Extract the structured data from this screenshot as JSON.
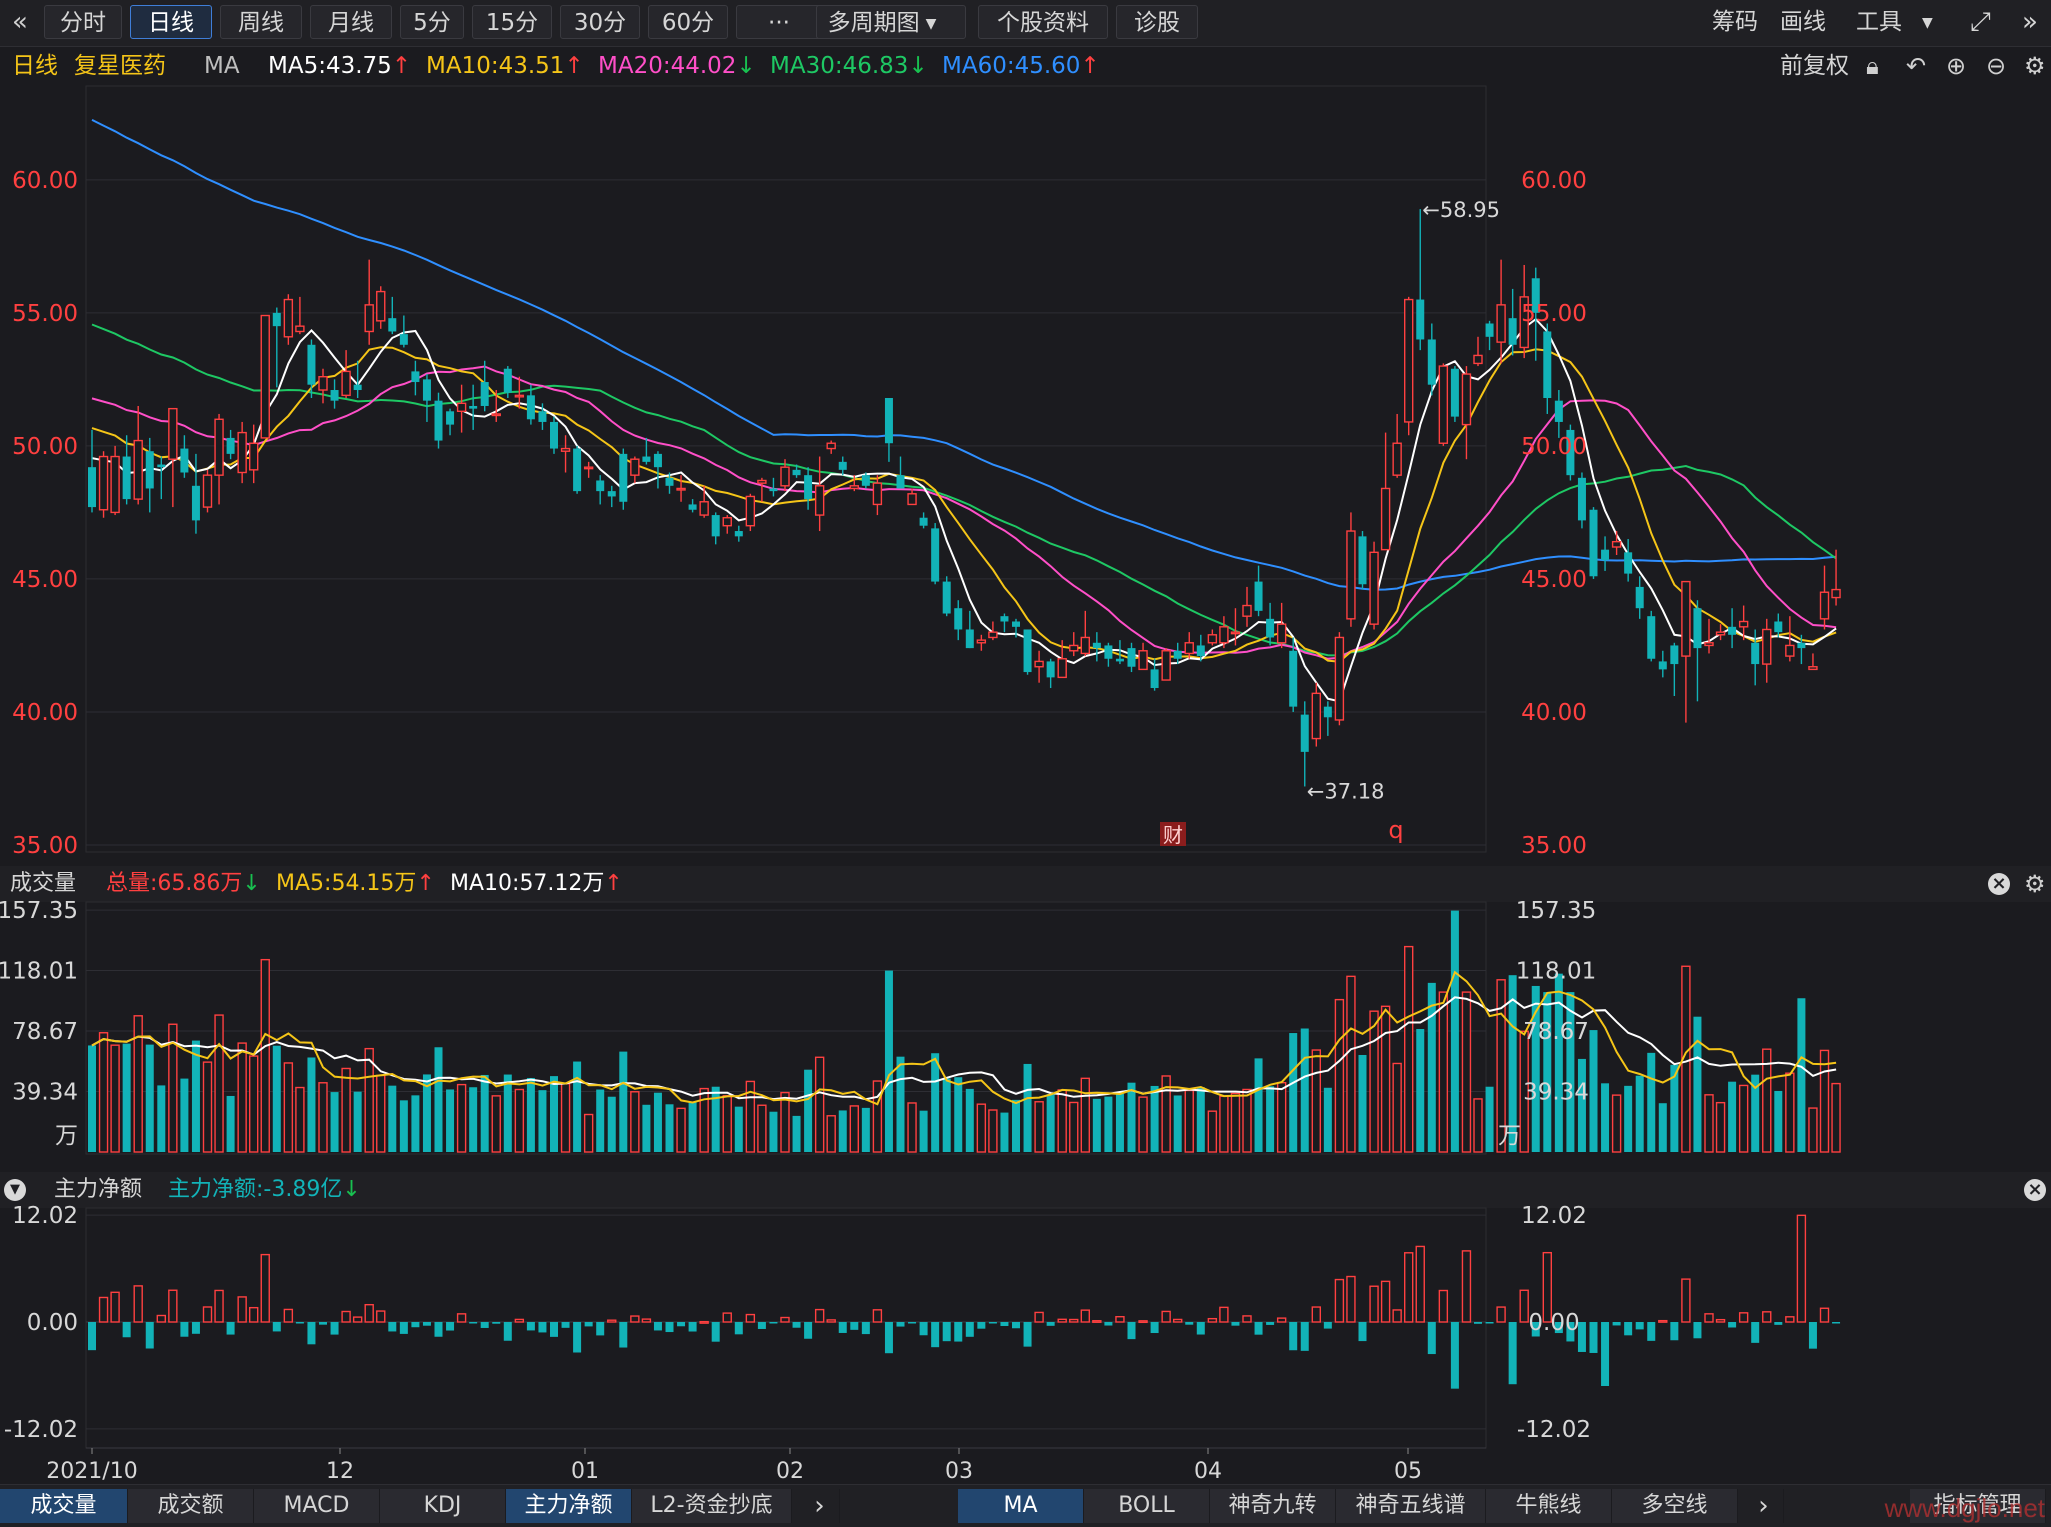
{
  "toolbar": {
    "back_icon": "double-chevron-left-icon",
    "tabs": [
      "分时",
      "日线",
      "周线",
      "月线",
      "5分",
      "15分",
      "30分",
      "60分",
      "···",
      "多周期图",
      "个股资料",
      "诊股"
    ],
    "active_tab": "日线",
    "right": [
      "筹码",
      "画线",
      "工具"
    ],
    "fullscreen_icon": "fullscreen-icon",
    "collapse_icon": "double-chevron-right-icon"
  },
  "info": {
    "period": "日线",
    "stock_name": "复星医药",
    "indicator": "MA",
    "ma5": "MA5:43.75",
    "ma10": "MA10:43.51",
    "ma20": "MA20:44.02",
    "ma30": "MA30:46.83",
    "ma60": "MA60:45.60",
    "adjust": "前复权",
    "colors": {
      "ma5": "#ffffff",
      "ma10": "#f5c518",
      "ma20": "#ff4fc8",
      "ma30": "#1ec864",
      "ma60": "#2f8fff",
      "up": "#ff4040",
      "down": "#12b3b8"
    }
  },
  "price_axis": {
    "ticks": [
      "60.00",
      "55.00",
      "50.00",
      "45.00",
      "40.00",
      "35.00"
    ],
    "high_label": "58.95",
    "low_label": "37.18",
    "event_badge": "财",
    "marker": "q"
  },
  "volume": {
    "title": "成交量",
    "total": "总量:65.86万",
    "ma5": "MA5:54.15万",
    "ma10": "MA10:57.12万",
    "ticks": [
      "157.35",
      "118.01",
      "78.67",
      "39.34",
      "万"
    ]
  },
  "capital": {
    "title": "主力净额",
    "value": "主力净额:-3.89亿",
    "ticks": [
      "12.02",
      "0.00",
      "-12.02"
    ]
  },
  "x_axis": {
    "labels": [
      "2021/10",
      "12",
      "01",
      "02",
      "03",
      "04",
      "05"
    ]
  },
  "bottom_tabs_left": [
    "成交量",
    "成交额",
    "MACD",
    "KDJ",
    "主力净额",
    "L2-资金抄底"
  ],
  "bottom_tabs_right": [
    "MA",
    "BOLL",
    "神奇九转",
    "神奇五线谱",
    "牛熊线",
    "多空线"
  ],
  "bottom_manage": "指标管理",
  "watermark": "www.dgjlo.net",
  "chart_data": {
    "type": "candlestick",
    "ylim": [
      35,
      63
    ],
    "candles": [
      [
        49.2,
        47.7,
        50.6,
        47.5
      ],
      [
        47.6,
        49.6,
        49.8,
        47.3
      ],
      [
        47.5,
        49.6,
        50.0,
        47.4
      ],
      [
        49.6,
        48.0,
        50.4,
        47.8
      ],
      [
        48.0,
        50.2,
        51.5,
        47.8
      ],
      [
        49.8,
        48.4,
        50.3,
        47.5
      ],
      [
        49.3,
        49.2,
        49.6,
        48.0
      ],
      [
        49.5,
        51.4,
        51.4,
        47.7
      ],
      [
        49.9,
        49.0,
        50.4,
        48.8
      ],
      [
        48.5,
        47.2,
        49.7,
        46.7
      ],
      [
        47.7,
        48.9,
        49.1,
        47.5
      ],
      [
        48.9,
        51.0,
        51.2,
        47.8
      ],
      [
        50.3,
        49.7,
        50.6,
        49.5
      ],
      [
        49.0,
        50.5,
        50.9,
        48.6
      ],
      [
        49.1,
        50.1,
        50.8,
        48.6
      ],
      [
        50.3,
        54.9,
        54.9,
        50.3
      ],
      [
        55.0,
        54.5,
        55.2,
        52.2
      ],
      [
        54.1,
        55.5,
        55.7,
        53.8
      ],
      [
        54.3,
        54.5,
        55.6,
        54.2
      ],
      [
        53.8,
        52.3,
        54.0,
        51.8
      ],
      [
        52.1,
        52.6,
        52.9,
        51.6
      ],
      [
        52.1,
        51.7,
        52.5,
        51.4
      ],
      [
        51.9,
        52.8,
        53.6,
        51.8
      ],
      [
        52.3,
        52.1,
        53.2,
        51.8
      ],
      [
        54.3,
        55.3,
        57.0,
        53.8
      ],
      [
        54.7,
        55.8,
        56.0,
        54.4
      ],
      [
        54.8,
        54.3,
        55.6,
        54.2
      ],
      [
        54.2,
        53.8,
        54.9,
        53.7
      ],
      [
        52.8,
        52.4,
        53.2,
        51.9
      ],
      [
        52.5,
        51.7,
        52.7,
        50.9
      ],
      [
        51.7,
        50.2,
        52.0,
        49.9
      ],
      [
        51.3,
        50.8,
        51.4,
        50.4
      ],
      [
        51.3,
        51.6,
        52.3,
        50.5
      ],
      [
        51.5,
        51.4,
        52.3,
        50.6
      ],
      [
        52.4,
        51.5,
        53.2,
        51.3
      ],
      [
        51.2,
        51.2,
        52.1,
        50.9
      ],
      [
        52.9,
        52.0,
        53.0,
        51.8
      ],
      [
        51.9,
        51.9,
        52.6,
        51.4
      ],
      [
        51.9,
        51.0,
        52.3,
        50.8
      ],
      [
        51.3,
        50.9,
        51.6,
        50.6
      ],
      [
        50.9,
        49.9,
        51.1,
        49.7
      ],
      [
        49.8,
        49.9,
        50.4,
        49.0
      ],
      [
        49.9,
        48.3,
        50.0,
        48.2
      ],
      [
        49.2,
        49.2,
        49.4,
        48.8
      ],
      [
        48.7,
        48.3,
        48.9,
        47.8
      ],
      [
        48.3,
        48.1,
        48.5,
        47.7
      ],
      [
        49.7,
        47.9,
        49.9,
        47.6
      ],
      [
        48.9,
        49.5,
        49.6,
        48.6
      ],
      [
        49.6,
        49.4,
        50.3,
        49.3
      ],
      [
        49.7,
        49.2,
        49.8,
        48.4
      ],
      [
        48.8,
        48.5,
        49.0,
        48.2
      ],
      [
        48.4,
        48.4,
        48.9,
        47.9
      ],
      [
        47.8,
        47.6,
        48.0,
        47.5
      ],
      [
        47.4,
        47.9,
        48.5,
        47.3
      ],
      [
        47.4,
        46.6,
        47.5,
        46.3
      ],
      [
        47.0,
        47.3,
        47.4,
        46.7
      ],
      [
        46.8,
        46.6,
        47.0,
        46.4
      ],
      [
        47.0,
        48.1,
        48.2,
        46.8
      ],
      [
        48.6,
        48.7,
        48.8,
        47.9
      ],
      [
        48.4,
        48.3,
        48.8,
        48.1
      ],
      [
        48.5,
        49.2,
        49.5,
        48.3
      ],
      [
        49.1,
        48.9,
        49.3,
        48.8
      ],
      [
        48.9,
        48.0,
        49.2,
        47.6
      ],
      [
        47.4,
        48.5,
        49.6,
        46.8
      ],
      [
        49.9,
        50.1,
        50.2,
        49.7
      ],
      [
        49.4,
        49.1,
        49.6,
        48.9
      ],
      [
        48.4,
        48.5,
        48.9,
        48.3
      ],
      [
        48.9,
        48.5,
        49.0,
        48.4
      ],
      [
        47.8,
        48.6,
        48.9,
        47.4
      ],
      [
        51.8,
        50.1,
        51.8,
        49.4
      ],
      [
        48.9,
        48.4,
        49.6,
        48.4
      ],
      [
        47.8,
        48.2,
        48.4,
        47.8
      ],
      [
        47.3,
        47.0,
        47.5,
        46.9
      ],
      [
        46.9,
        44.9,
        47.1,
        44.8
      ],
      [
        44.9,
        43.7,
        45.1,
        43.6
      ],
      [
        43.9,
        43.1,
        44.2,
        42.7
      ],
      [
        43.1,
        42.4,
        43.8,
        42.4
      ],
      [
        42.6,
        42.7,
        42.9,
        42.3
      ],
      [
        42.8,
        43.0,
        43.4,
        42.7
      ],
      [
        43.6,
        43.4,
        43.7,
        43.0
      ],
      [
        43.4,
        43.2,
        43.5,
        42.8
      ],
      [
        43.1,
        41.5,
        43.1,
        41.4
      ],
      [
        41.7,
        41.9,
        42.3,
        41.1
      ],
      [
        41.9,
        41.3,
        42.0,
        40.9
      ],
      [
        41.3,
        42.0,
        42.7,
        41.3
      ],
      [
        42.3,
        42.5,
        43.0,
        42.1
      ],
      [
        42.2,
        42.8,
        43.8,
        42.1
      ],
      [
        42.6,
        42.4,
        43.0,
        41.9
      ],
      [
        42.5,
        42.0,
        42.6,
        41.7
      ],
      [
        42.0,
        41.9,
        42.7,
        41.8
      ],
      [
        42.4,
        41.7,
        42.6,
        41.5
      ],
      [
        41.6,
        42.3,
        42.6,
        41.6
      ],
      [
        41.6,
        40.9,
        42.0,
        40.8
      ],
      [
        41.2,
        42.3,
        42.4,
        41.2
      ],
      [
        42.3,
        42.0,
        42.6,
        41.8
      ],
      [
        42.2,
        42.6,
        43.0,
        42.0
      ],
      [
        42.5,
        42.1,
        42.9,
        41.9
      ],
      [
        42.6,
        42.9,
        43.1,
        42.5
      ],
      [
        42.6,
        43.2,
        43.6,
        42.4
      ],
      [
        43.0,
        43.0,
        43.9,
        42.5
      ],
      [
        43.6,
        44.0,
        44.7,
        43.2
      ],
      [
        44.9,
        43.8,
        45.5,
        43.6
      ],
      [
        43.5,
        42.8,
        44.1,
        42.5
      ],
      [
        42.6,
        43.3,
        44.1,
        42.4
      ],
      [
        42.3,
        40.2,
        42.8,
        40.0
      ],
      [
        39.9,
        38.5,
        40.4,
        37.2
      ],
      [
        39.0,
        40.7,
        41.1,
        38.7
      ],
      [
        40.2,
        39.8,
        40.4,
        39.1
      ],
      [
        39.7,
        42.8,
        43.0,
        39.5
      ],
      [
        43.5,
        46.8,
        47.5,
        43.2
      ],
      [
        46.6,
        44.8,
        46.8,
        44.6
      ],
      [
        43.3,
        46.0,
        46.4,
        43.1
      ],
      [
        46.1,
        48.4,
        50.5,
        46.1
      ],
      [
        48.9,
        50.1,
        51.2,
        48.8
      ],
      [
        50.9,
        55.5,
        55.6,
        50.4
      ],
      [
        55.5,
        54.0,
        58.9,
        53.6
      ],
      [
        54.0,
        52.3,
        54.6,
        51.9
      ],
      [
        50.1,
        53.0,
        53.1,
        50.0
      ],
      [
        52.9,
        51.1,
        53.0,
        50.9
      ],
      [
        50.8,
        52.7,
        53.0,
        49.5
      ],
      [
        53.1,
        53.4,
        54.1,
        53.0
      ],
      [
        54.6,
        54.1,
        54.7,
        53.6
      ],
      [
        53.9,
        55.3,
        57.0,
        53.1
      ],
      [
        54.8,
        53.8,
        55.9,
        53.4
      ],
      [
        53.7,
        55.6,
        56.8,
        53.3
      ],
      [
        56.3,
        55.0,
        56.7,
        53.2
      ],
      [
        54.3,
        51.8,
        54.6,
        51.2
      ],
      [
        51.7,
        50.9,
        52.1,
        50.3
      ],
      [
        50.6,
        48.9,
        50.8,
        48.7
      ],
      [
        48.8,
        47.2,
        49.0,
        46.9
      ],
      [
        47.6,
        45.1,
        47.7,
        45.0
      ],
      [
        46.1,
        45.7,
        46.6,
        45.3
      ],
      [
        46.2,
        46.4,
        46.8,
        45.9
      ],
      [
        46.0,
        45.2,
        46.5,
        44.9
      ],
      [
        44.7,
        43.9,
        45.1,
        43.5
      ],
      [
        43.6,
        42.0,
        43.8,
        41.9
      ],
      [
        41.9,
        41.6,
        42.3,
        41.3
      ],
      [
        42.5,
        41.8,
        42.6,
        40.6
      ],
      [
        42.1,
        44.9,
        44.9,
        39.6
      ],
      [
        43.9,
        42.4,
        44.2,
        40.4
      ],
      [
        42.5,
        42.6,
        43.5,
        42.2
      ],
      [
        42.9,
        43.0,
        43.3,
        42.7
      ],
      [
        43.2,
        42.9,
        43.9,
        42.4
      ],
      [
        43.2,
        43.4,
        44.0,
        42.7
      ],
      [
        42.6,
        41.8,
        43.1,
        41.0
      ],
      [
        41.8,
        43.1,
        43.5,
        41.1
      ],
      [
        43.4,
        43.0,
        43.7,
        42.8
      ],
      [
        42.1,
        42.5,
        43.6,
        41.9
      ],
      [
        42.6,
        42.4,
        42.9,
        41.8
      ],
      [
        41.6,
        41.7,
        42.2,
        41.6
      ],
      [
        43.5,
        44.5,
        45.5,
        43.1
      ],
      [
        44.3,
        44.6,
        46.1,
        44.0
      ]
    ],
    "volume_unit": "万",
    "volume_ylim": [
      0,
      160
    ],
    "capital_unit": "亿",
    "capital_ylim": [
      -12.02,
      12.02
    ]
  }
}
